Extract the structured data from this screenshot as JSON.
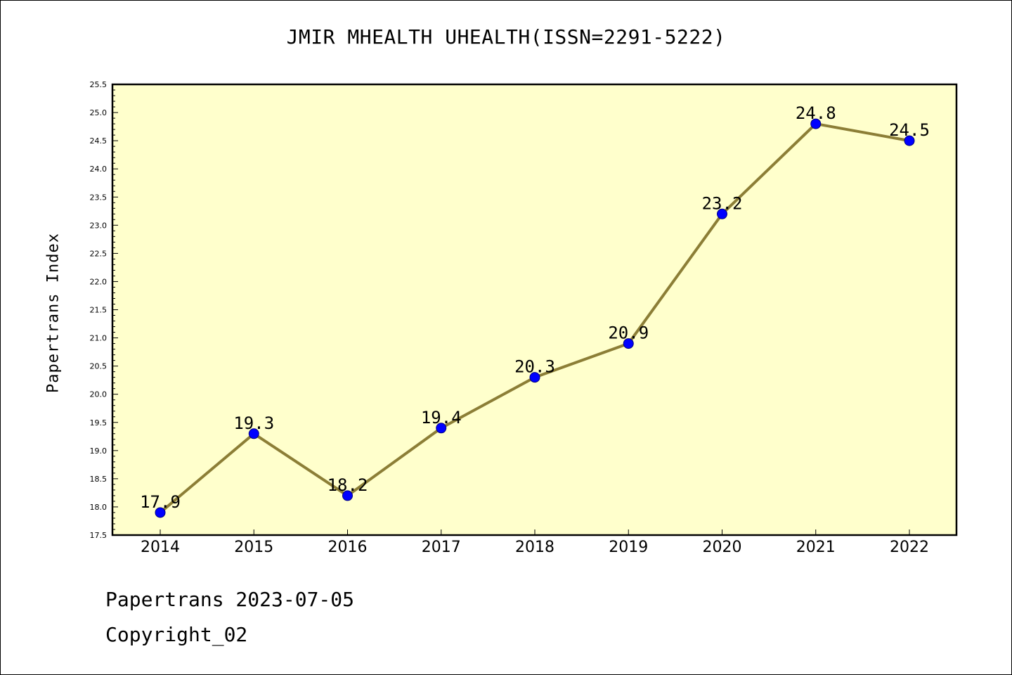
{
  "chart_data": {
    "type": "line",
    "title": "JMIR MHEALTH UHEALTH(ISSN=2291-5222)",
    "xlabel": "",
    "ylabel": "Papertrans Index",
    "categories": [
      "2014",
      "2015",
      "2016",
      "2017",
      "2018",
      "2019",
      "2020",
      "2021",
      "2022"
    ],
    "series": [
      {
        "values": [
          17.9,
          19.3,
          18.2,
          19.4,
          20.3,
          20.9,
          23.2,
          24.8,
          24.5
        ],
        "data_labels": [
          "17.9",
          "19.3",
          "18.2",
          "19.4",
          "20.3",
          "20.9",
          "23.2",
          "24.8",
          "24.5"
        ]
      }
    ],
    "ylim": [
      17.5,
      25.5
    ],
    "yticks": [
      "17.5",
      "18.0",
      "18.5",
      "19.0",
      "19.5",
      "20.0",
      "20.5",
      "21.0",
      "21.5",
      "22.0",
      "22.5",
      "23.0",
      "23.5",
      "24.0",
      "24.5",
      "25.0",
      "25.5"
    ],
    "grid": false,
    "legend": "none",
    "colors": {
      "plot_background": "#ffffcc",
      "line": "#8c7e36",
      "marker_fill": "#0000ff",
      "marker_edge": "#000080"
    }
  },
  "footer": {
    "line1": "Papertrans 2023-07-05",
    "line2": "Copyright_02"
  }
}
